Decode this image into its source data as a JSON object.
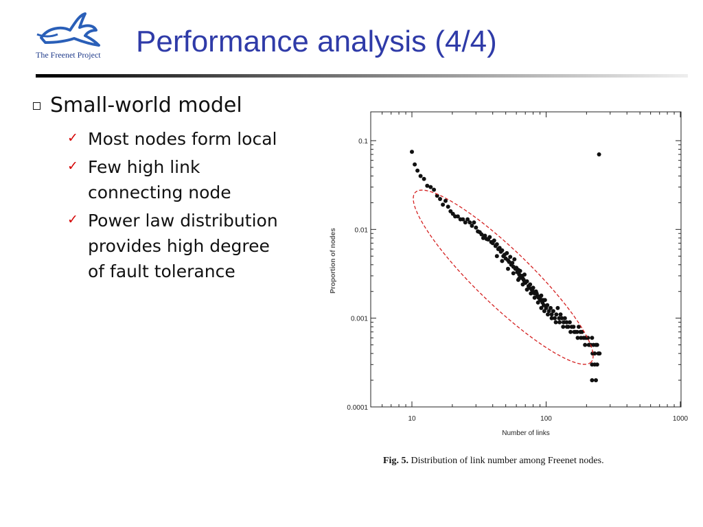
{
  "logo": {
    "text": "The Freenet Project",
    "icon": "rabbit-icon"
  },
  "slide": {
    "title": "Performance analysis (4/4)",
    "bullet": "Small-world model",
    "sub_bullets": [
      [
        "Most nodes form local"
      ],
      [
        "Few high link",
        "connecting node"
      ],
      [
        "Power law distribution",
        "provides high degree",
        "of fault tolerance"
      ]
    ]
  },
  "chart_data": {
    "type": "scatter",
    "xlabel": "Number of links",
    "ylabel": "Proportion of nodes",
    "x_scale": "log",
    "y_scale": "log",
    "xlim": [
      10,
      1000
    ],
    "ylim": [
      0.0001,
      0.1
    ],
    "x_ticks": [
      "10",
      "100",
      "1000"
    ],
    "y_ticks": [
      "0.1",
      "0.01",
      "0.001",
      "0.0001"
    ],
    "annotation": "dashed red ellipse around main power-law cluster",
    "accent_color": "#d42020",
    "points": [
      [
        10,
        0.075
      ],
      [
        10.5,
        0.054
      ],
      [
        11,
        0.046
      ],
      [
        11.6,
        0.04
      ],
      [
        12.3,
        0.037
      ],
      [
        13,
        0.031
      ],
      [
        13.8,
        0.03
      ],
      [
        14.6,
        0.028
      ],
      [
        15.4,
        0.024
      ],
      [
        16.2,
        0.022
      ],
      [
        17,
        0.019
      ],
      [
        17.8,
        0.021
      ],
      [
        18.6,
        0.018
      ],
      [
        19.4,
        0.016
      ],
      [
        20.2,
        0.015
      ],
      [
        21,
        0.014
      ],
      [
        22,
        0.014
      ],
      [
        23,
        0.013
      ],
      [
        24,
        0.013
      ],
      [
        25,
        0.012
      ],
      [
        26,
        0.013
      ],
      [
        27,
        0.012
      ],
      [
        28,
        0.011
      ],
      [
        29,
        0.012
      ],
      [
        30,
        0.0105
      ],
      [
        31,
        0.0095
      ],
      [
        32,
        0.0093
      ],
      [
        33,
        0.0088
      ],
      [
        34,
        0.008
      ],
      [
        35,
        0.0085
      ],
      [
        36,
        0.0078
      ],
      [
        37,
        0.0077
      ],
      [
        38,
        0.0082
      ],
      [
        39,
        0.0072
      ],
      [
        40,
        0.007
      ],
      [
        41,
        0.0075
      ],
      [
        42,
        0.0065
      ],
      [
        43,
        0.0068
      ],
      [
        44,
        0.006
      ],
      [
        45,
        0.0062
      ],
      [
        46,
        0.0056
      ],
      [
        47,
        0.0058
      ],
      [
        48,
        0.005
      ],
      [
        49,
        0.0052
      ],
      [
        50,
        0.0047
      ],
      [
        51,
        0.0054
      ],
      [
        52,
        0.0045
      ],
      [
        53,
        0.0043
      ],
      [
        54,
        0.0049
      ],
      [
        55,
        0.004
      ],
      [
        56,
        0.0042
      ],
      [
        57,
        0.0038
      ],
      [
        58,
        0.0046
      ],
      [
        59,
        0.0036
      ],
      [
        60,
        0.0037
      ],
      [
        61,
        0.0033
      ],
      [
        62,
        0.0035
      ],
      [
        63,
        0.0031
      ],
      [
        64,
        0.0034
      ],
      [
        65,
        0.0029
      ],
      [
        66,
        0.003
      ],
      [
        67,
        0.0028
      ],
      [
        68,
        0.0027
      ],
      [
        69,
        0.0031
      ],
      [
        70,
        0.0025
      ],
      [
        72,
        0.0026
      ],
      [
        74,
        0.0023
      ],
      [
        76,
        0.0024
      ],
      [
        78,
        0.0021
      ],
      [
        80,
        0.0022
      ],
      [
        82,
        0.0019
      ],
      [
        84,
        0.002
      ],
      [
        86,
        0.0018
      ],
      [
        88,
        0.0017
      ],
      [
        90,
        0.0016
      ],
      [
        92,
        0.0018
      ],
      [
        94,
        0.0015
      ],
      [
        96,
        0.0014
      ],
      [
        98,
        0.0016
      ],
      [
        100,
        0.0013
      ],
      [
        102,
        0.0014
      ],
      [
        105,
        0.0012
      ],
      [
        108,
        0.0013
      ],
      [
        110,
        0.0011
      ],
      [
        113,
        0.0012
      ],
      [
        116,
        0.001
      ],
      [
        119,
        0.0011
      ],
      [
        122,
        0.0013
      ],
      [
        125,
        0.001
      ],
      [
        128,
        0.0011
      ],
      [
        131,
        0.001
      ],
      [
        135,
        0.0009
      ],
      [
        138,
        0.001
      ],
      [
        142,
        0.0009
      ],
      [
        146,
        0.0008
      ],
      [
        150,
        0.0009
      ],
      [
        155,
        0.0008
      ],
      [
        160,
        0.0008
      ],
      [
        165,
        0.0007
      ],
      [
        170,
        0.0007
      ],
      [
        175,
        0.0008
      ],
      [
        180,
        0.0007
      ],
      [
        185,
        0.0007
      ],
      [
        190,
        0.0006
      ],
      [
        195,
        0.0006
      ],
      [
        200,
        0.0006
      ],
      [
        205,
        0.0006
      ],
      [
        210,
        0.0005
      ],
      [
        215,
        0.0005
      ],
      [
        220,
        0.0006
      ],
      [
        225,
        0.0005
      ],
      [
        230,
        0.0004
      ],
      [
        235,
        0.0005
      ],
      [
        240,
        0.0005
      ],
      [
        245,
        0.0004
      ],
      [
        250,
        0.0004
      ],
      [
        220,
        0.0003
      ],
      [
        230,
        0.0003
      ],
      [
        240,
        0.0003
      ],
      [
        220,
        0.0002
      ],
      [
        235,
        0.0002
      ],
      [
        43,
        0.005
      ],
      [
        47,
        0.0044
      ],
      [
        52,
        0.0036
      ],
      [
        57,
        0.0032
      ],
      [
        62,
        0.0027
      ],
      [
        67,
        0.0024
      ],
      [
        72,
        0.0021
      ],
      [
        77,
        0.0019
      ],
      [
        82,
        0.0017
      ],
      [
        87,
        0.0015
      ],
      [
        92,
        0.0013
      ],
      [
        97,
        0.0012
      ],
      [
        103,
        0.0011
      ],
      [
        110,
        0.001
      ],
      [
        118,
        0.0009
      ],
      [
        126,
        0.0009
      ],
      [
        134,
        0.0008
      ],
      [
        143,
        0.0008
      ],
      [
        152,
        0.0007
      ],
      [
        162,
        0.0007
      ],
      [
        172,
        0.0006
      ],
      [
        182,
        0.0006
      ],
      [
        195,
        0.0005
      ],
      [
        208,
        0.0005
      ],
      [
        222,
        0.0004
      ],
      [
        63,
        0.0028
      ],
      [
        69,
        0.0026
      ],
      [
        75,
        0.0022
      ],
      [
        80,
        0.002
      ],
      [
        85,
        0.0019
      ],
      [
        90,
        0.0017
      ],
      [
        95,
        0.0016
      ],
      [
        248,
        0.07
      ]
    ]
  },
  "caption": {
    "label": "Fig. 5.",
    "text": " Distribution of link number among Freenet nodes."
  }
}
